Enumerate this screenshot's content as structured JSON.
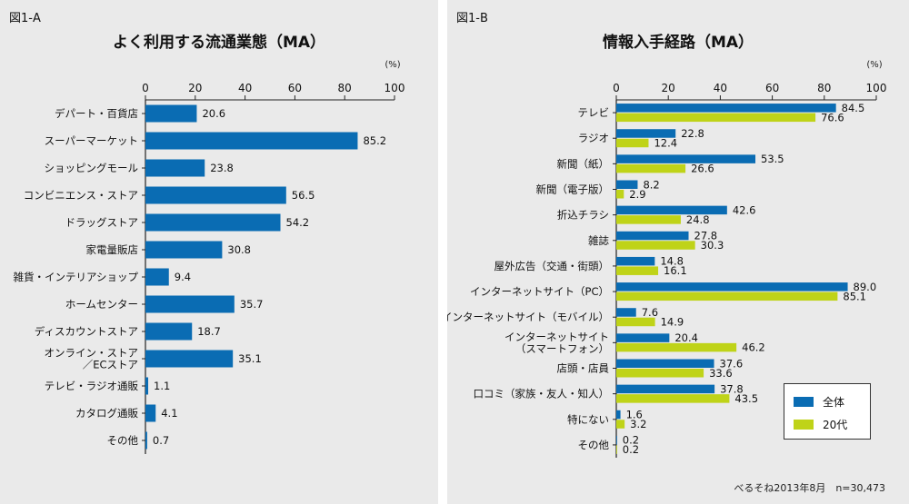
{
  "colors": {
    "all": "#0a6cb3",
    "twenties": "#bfd318",
    "axis": "#222222",
    "panel": "#eaeaea"
  },
  "chart_data": [
    {
      "type": "bar",
      "orientation": "horizontal",
      "figure_label": "図1-A",
      "title": "よく利用する流通業態（MA）",
      "unit": "(%)",
      "xlim": [
        0,
        100
      ],
      "ticks": [
        0,
        20,
        40,
        60,
        80,
        100
      ],
      "categories": [
        [
          "デパート・百貨店"
        ],
        [
          "スーパーマーケット"
        ],
        [
          "ショッピングモール"
        ],
        [
          "コンビニエンス・ストア"
        ],
        [
          "ドラッグストア"
        ],
        [
          "家電量販店"
        ],
        [
          "雑貨・インテリアショップ"
        ],
        [
          "ホームセンター"
        ],
        [
          "ディスカウントストア"
        ],
        [
          "オンライン・ストア",
          "／ECストア"
        ],
        [
          "テレビ・ラジオ通販"
        ],
        [
          "カタログ通販"
        ],
        [
          "その他"
        ]
      ],
      "series": [
        {
          "name": "全体",
          "color_key": "all",
          "values": [
            20.6,
            85.2,
            23.8,
            56.5,
            54.2,
            30.8,
            9.4,
            35.7,
            18.7,
            35.1,
            1.1,
            4.1,
            0.7
          ]
        }
      ]
    },
    {
      "type": "bar",
      "orientation": "horizontal",
      "figure_label": "図1-B",
      "title": "情報入手経路（MA）",
      "unit": "(%)",
      "xlim": [
        0,
        100
      ],
      "ticks": [
        0,
        20,
        40,
        60,
        80,
        100
      ],
      "categories": [
        [
          "テレビ"
        ],
        [
          "ラジオ"
        ],
        [
          "新聞（紙）"
        ],
        [
          "新聞（電子版）"
        ],
        [
          "折込チラシ"
        ],
        [
          "雑誌"
        ],
        [
          "屋外広告（交通・街頭）"
        ],
        [
          "インターネットサイト（PC）"
        ],
        [
          "インターネットサイト（モバイル）"
        ],
        [
          "インターネットサイト",
          "（スマートフォン）"
        ],
        [
          "店頭・店員"
        ],
        [
          "口コミ（家族・友人・知人）"
        ],
        [
          "特にない"
        ],
        [
          "その他"
        ]
      ],
      "series": [
        {
          "name": "全体",
          "color_key": "all",
          "values": [
            84.5,
            22.8,
            53.5,
            8.2,
            42.6,
            27.8,
            14.8,
            89.0,
            7.6,
            20.4,
            37.6,
            37.8,
            1.6,
            0.2
          ]
        },
        {
          "name": "20代",
          "color_key": "twenties",
          "values": [
            76.6,
            12.4,
            26.6,
            2.9,
            24.8,
            30.3,
            16.1,
            85.1,
            14.9,
            46.2,
            33.6,
            43.5,
            3.2,
            0.2
          ]
        }
      ],
      "source": "べるそね2013年8月　n=30,473"
    }
  ]
}
